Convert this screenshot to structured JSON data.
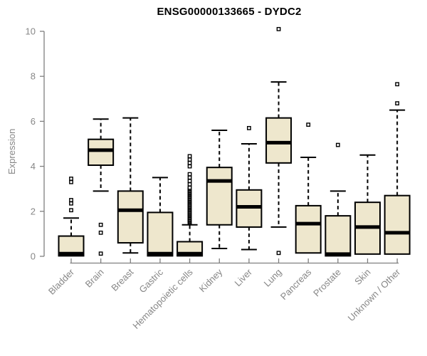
{
  "chart_data": {
    "type": "boxplot",
    "title": "ENSG00000133665 - DYDC2",
    "ylabel": "Expression",
    "xlabel": "",
    "ylim": [
      0,
      10
    ],
    "yticks": [
      0,
      2,
      4,
      6,
      8,
      10
    ],
    "grid": false,
    "legend": null,
    "categories": [
      "Bladder",
      "Brain",
      "Breast",
      "Gastric",
      "Hematopoietic cells",
      "Kidney",
      "Liver",
      "Lung",
      "Pancreas",
      "Prostate",
      "Skin",
      "Unknown / Other"
    ],
    "boxes": [
      {
        "category": "Bladder",
        "whisker_low": null,
        "q1": 0.02,
        "median": 0.12,
        "q3": 0.9,
        "whisker_high": 1.7,
        "outliers": [
          2.05,
          2.35,
          2.5,
          3.3,
          3.45
        ]
      },
      {
        "category": "Brain",
        "whisker_low": 2.9,
        "q1": 4.05,
        "median": 4.72,
        "q3": 5.2,
        "whisker_high": 6.1,
        "outliers": [
          0.12,
          1.05,
          1.4
        ]
      },
      {
        "category": "Breast",
        "whisker_low": 0.15,
        "q1": 0.6,
        "median": 2.05,
        "q3": 2.9,
        "whisker_high": 6.15,
        "outliers": []
      },
      {
        "category": "Gastric",
        "whisker_low": null,
        "q1": 0.02,
        "median": 0.12,
        "q3": 1.95,
        "whisker_high": 3.5,
        "outliers": []
      },
      {
        "category": "Hematopoietic cells",
        "whisker_low": null,
        "q1": 0.02,
        "median": 0.12,
        "q3": 0.65,
        "whisker_high": 1.4,
        "outliers": [
          1.5,
          1.55,
          1.6,
          1.65,
          1.7,
          1.75,
          1.8,
          1.85,
          1.9,
          1.95,
          2.0,
          2.05,
          2.1,
          2.15,
          2.2,
          2.25,
          2.3,
          2.35,
          2.4,
          2.45,
          2.5,
          2.55,
          2.6,
          2.65,
          2.7,
          2.75,
          2.8,
          2.85,
          2.9,
          2.95,
          3.0,
          3.05,
          3.2,
          3.35,
          3.5,
          3.65,
          4.0,
          4.15,
          4.3,
          4.45
        ]
      },
      {
        "category": "Kidney",
        "whisker_low": 0.35,
        "q1": 1.4,
        "median": 3.35,
        "q3": 3.95,
        "whisker_high": 5.6,
        "outliers": []
      },
      {
        "category": "Liver",
        "whisker_low": 0.3,
        "q1": 1.3,
        "median": 2.2,
        "q3": 2.95,
        "whisker_high": 5.0,
        "outliers": [
          5.7
        ]
      },
      {
        "category": "Lung",
        "whisker_low": 1.3,
        "q1": 4.15,
        "median": 5.05,
        "q3": 6.15,
        "whisker_high": 7.75,
        "outliers": [
          0.15,
          10.1
        ]
      },
      {
        "category": "Pancreas",
        "whisker_low": null,
        "q1": 0.15,
        "median": 1.45,
        "q3": 2.25,
        "whisker_high": 4.4,
        "outliers": [
          5.85
        ]
      },
      {
        "category": "Prostate",
        "whisker_low": null,
        "q1": 0.02,
        "median": 0.1,
        "q3": 1.8,
        "whisker_high": 2.9,
        "outliers": [
          4.95
        ]
      },
      {
        "category": "Skin",
        "whisker_low": null,
        "q1": 0.1,
        "median": 1.3,
        "q3": 2.4,
        "whisker_high": 4.5,
        "outliers": []
      },
      {
        "category": "Unknown / Other",
        "whisker_low": null,
        "q1": 0.1,
        "median": 1.05,
        "q3": 2.7,
        "whisker_high": 6.5,
        "outliers": [
          6.8,
          7.65
        ]
      }
    ],
    "colors": {
      "box_fill": "#EEE7CD",
      "box_stroke": "#000000",
      "median": "#000000",
      "whisker": "#000000",
      "outlier_stroke": "#000000",
      "outlier_fill": "#FFFFFF",
      "axis": "#7F7F7F",
      "tick_text": "#878787",
      "title_text": "#000000"
    }
  }
}
